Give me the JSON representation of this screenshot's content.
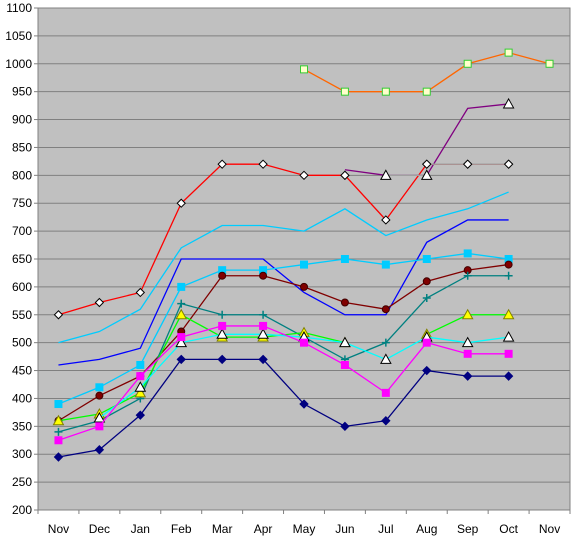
{
  "chart_data": {
    "type": "line",
    "title": "",
    "xlabel": "",
    "ylabel": "",
    "categories": [
      "Nov",
      "Dec",
      "Jan",
      "Feb",
      "Mar",
      "Apr",
      "May",
      "Jun",
      "Jul",
      "Aug",
      "Sep",
      "Oct",
      "Nov"
    ],
    "ylim": [
      200,
      1100
    ],
    "yticks": [
      200,
      250,
      300,
      350,
      400,
      450,
      500,
      550,
      600,
      650,
      700,
      750,
      800,
      850,
      900,
      950,
      1000,
      1050,
      1100
    ],
    "grid": true,
    "legend": "none",
    "plot_background": "#c0c0c0",
    "series": [
      {
        "color": "#ff0000",
        "marker": "diamond-open",
        "values": [
          550,
          572,
          590,
          750,
          820,
          820,
          800,
          800,
          720,
          820,
          820,
          820,
          null
        ]
      },
      {
        "color": "#00ccff",
        "marker": "none",
        "values": [
          500,
          520,
          560,
          670,
          710,
          710,
          700,
          740,
          692,
          720,
          740,
          770,
          null
        ]
      },
      {
        "color": "#0000ff",
        "marker": "none",
        "values": [
          460,
          470,
          490,
          650,
          650,
          650,
          590,
          550,
          550,
          680,
          720,
          720,
          null
        ]
      },
      {
        "color": "#00ccff",
        "marker": "square",
        "values": [
          390,
          420,
          460,
          600,
          630,
          630,
          640,
          650,
          640,
          650,
          660,
          650,
          null
        ]
      },
      {
        "color": "#800000",
        "marker": "circle",
        "values": [
          360,
          405,
          440,
          520,
          620,
          620,
          600,
          572,
          560,
          610,
          630,
          640,
          null
        ]
      },
      {
        "color": "#008080",
        "marker": "plus",
        "values": [
          340,
          360,
          400,
          570,
          550,
          550,
          510,
          470,
          500,
          580,
          620,
          620,
          null
        ]
      },
      {
        "color": "#00ff00",
        "marker": "triangle-yellow",
        "values": [
          360,
          372,
          410,
          550,
          510,
          510,
          518,
          500,
          null,
          515,
          550,
          550,
          null
        ]
      },
      {
        "color": "#00ffff",
        "marker": "triangle-open",
        "values": [
          null,
          365,
          420,
          500,
          515,
          515,
          510,
          500,
          470,
          510,
          500,
          510,
          null
        ]
      },
      {
        "color": "#ff00ff",
        "marker": "square",
        "values": [
          325,
          350,
          440,
          510,
          530,
          530,
          500,
          460,
          410,
          500,
          480,
          480,
          null
        ]
      },
      {
        "color": "#000080",
        "marker": "diamond",
        "values": [
          295,
          308,
          370,
          470,
          470,
          470,
          390,
          350,
          360,
          450,
          440,
          440,
          null
        ]
      },
      {
        "color": "#800080",
        "marker": "none",
        "values": [
          null,
          null,
          null,
          null,
          null,
          null,
          null,
          810,
          800,
          800,
          920,
          928,
          null
        ]
      },
      {
        "color": "#a0a0a0",
        "marker": "diamond-open",
        "values": [
          null,
          null,
          null,
          null,
          null,
          null,
          null,
          800,
          null,
          820,
          820,
          820,
          null
        ]
      },
      {
        "color": "#a0a0a0",
        "marker": "triangle-open",
        "values": [
          null,
          null,
          null,
          null,
          null,
          null,
          null,
          null,
          800,
          800,
          null,
          928,
          null
        ]
      },
      {
        "color": "#ff6600",
        "marker": "square-green-open",
        "values": [
          null,
          null,
          null,
          null,
          null,
          null,
          990,
          950,
          950,
          950,
          1000,
          1020,
          1000
        ]
      }
    ]
  }
}
